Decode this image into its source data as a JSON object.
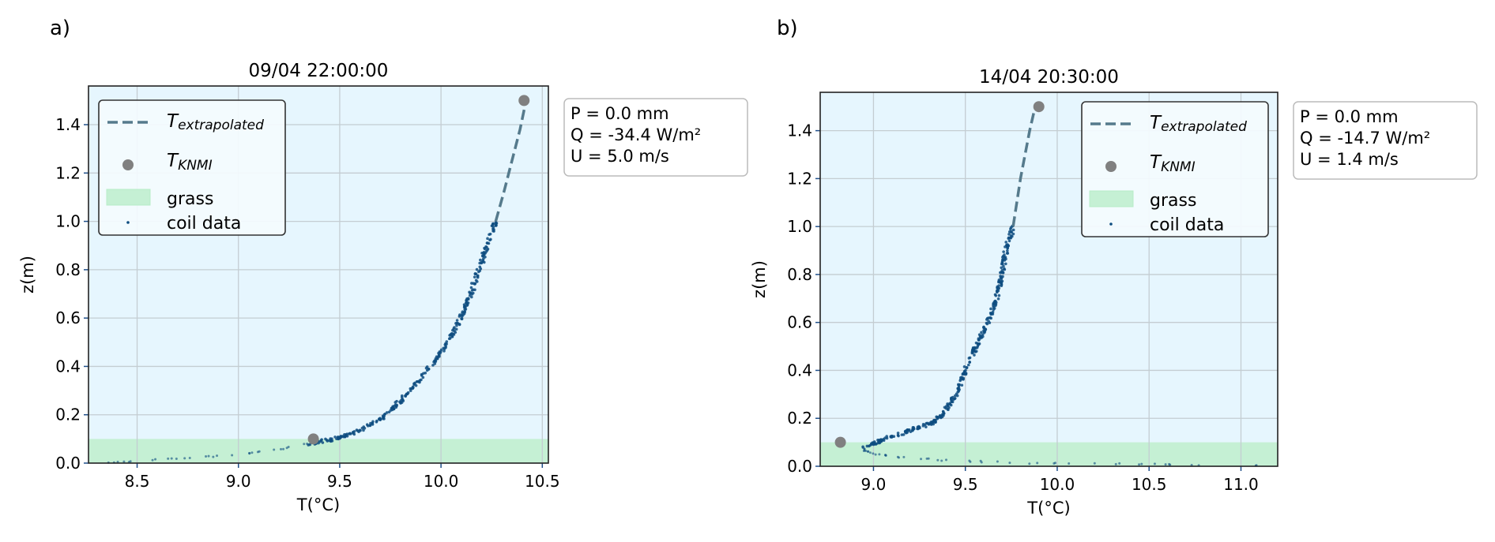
{
  "colors": {
    "background": "#e6f6fe",
    "grass": "#c5f0d4",
    "coil": "#0d4c80",
    "extrapolated": "#557a8c",
    "knmi": "#808080"
  },
  "chart_data": [
    {
      "panel_label": "a)",
      "type": "scatter",
      "title": "09/04 22:00:00",
      "xlabel": "T(°C)",
      "ylabel": "z(m)",
      "xlim": [
        8.26,
        10.53
      ],
      "ylim": [
        0,
        1.56
      ],
      "xticks": [
        "8.5",
        "9.0",
        "9.5",
        "10.0",
        "10.5"
      ],
      "yticks": [
        "0.0",
        "0.2",
        "0.4",
        "0.6",
        "0.8",
        "1.0",
        "1.2",
        "1.4"
      ],
      "grid": true,
      "grass_height": 0.1,
      "legend": {
        "placement": "upper-left",
        "entries": [
          "T_extrapolated",
          "T_KNMI",
          "grass",
          "coil data"
        ],
        "extrapolated_main": "T",
        "extrapolated_sub": "extrapolated",
        "knmi_main": "T",
        "knmi_sub": "KNMI",
        "grass": "grass",
        "coil": "coil data"
      },
      "info": [
        "P = 0.0 mm",
        "Q = -34.4 W/m²",
        "U = 5.0 m/s"
      ],
      "coil_profile": [
        [
          8.35,
          0.0
        ],
        [
          8.5,
          0.01
        ],
        [
          8.75,
          0.02
        ],
        [
          9.0,
          0.035
        ],
        [
          9.2,
          0.058
        ],
        [
          9.35,
          0.08
        ],
        [
          9.5,
          0.105
        ],
        [
          9.6,
          0.135
        ],
        [
          9.72,
          0.19
        ],
        [
          9.8,
          0.26
        ],
        [
          9.9,
          0.35
        ],
        [
          10.0,
          0.46
        ],
        [
          10.08,
          0.57
        ],
        [
          10.13,
          0.66
        ],
        [
          10.18,
          0.78
        ],
        [
          10.22,
          0.88
        ],
        [
          10.27,
          1.0
        ]
      ],
      "extrapolated": [
        [
          10.27,
          1.0
        ],
        [
          10.31,
          1.12
        ],
        [
          10.35,
          1.25
        ],
        [
          10.39,
          1.38
        ],
        [
          10.42,
          1.5
        ]
      ],
      "knmi": [
        [
          9.37,
          0.1
        ],
        [
          10.41,
          1.5
        ]
      ]
    },
    {
      "panel_label": "b)",
      "type": "scatter",
      "title": "14/04 20:30:00",
      "xlabel": "T(°C)",
      "ylabel": "z(m)",
      "xlim": [
        8.71,
        11.2
      ],
      "ylim": [
        0,
        1.56
      ],
      "xticks": [
        "9.0",
        "9.5",
        "10.0",
        "10.5",
        "11.0"
      ],
      "yticks": [
        "0.0",
        "0.2",
        "0.4",
        "0.6",
        "0.8",
        "1.0",
        "1.2",
        "1.4"
      ],
      "grid": true,
      "grass_height": 0.1,
      "legend": {
        "placement": "upper-right",
        "entries": [
          "T_extrapolated",
          "T_KNMI",
          "grass",
          "coil data"
        ],
        "extrapolated_main": "T",
        "extrapolated_sub": "extrapolated",
        "knmi_main": "T",
        "knmi_sub": "KNMI",
        "grass": "grass",
        "coil": "coil data"
      },
      "info": [
        "P = 0.0 mm",
        "Q = -14.7 W/m²",
        "U = 1.4 m/s"
      ],
      "coil_profile": [
        [
          11.1,
          0.004
        ],
        [
          10.6,
          0.008
        ],
        [
          10.2,
          0.01
        ],
        [
          9.8,
          0.014
        ],
        [
          9.4,
          0.024
        ],
        [
          9.2,
          0.034
        ],
        [
          9.05,
          0.046
        ],
        [
          8.95,
          0.062
        ],
        [
          8.95,
          0.08
        ],
        [
          9.05,
          0.11
        ],
        [
          9.2,
          0.15
        ],
        [
          9.32,
          0.18
        ],
        [
          9.38,
          0.22
        ],
        [
          9.45,
          0.3
        ],
        [
          9.5,
          0.4
        ],
        [
          9.56,
          0.5
        ],
        [
          9.62,
          0.6
        ],
        [
          9.67,
          0.7
        ],
        [
          9.7,
          0.8
        ],
        [
          9.72,
          0.9
        ],
        [
          9.76,
          1.0
        ]
      ],
      "extrapolated": [
        [
          9.76,
          1.0
        ],
        [
          9.8,
          1.2
        ],
        [
          9.85,
          1.4
        ],
        [
          9.88,
          1.5
        ]
      ],
      "knmi": [
        [
          8.82,
          0.1
        ],
        [
          9.9,
          1.5
        ]
      ]
    }
  ]
}
